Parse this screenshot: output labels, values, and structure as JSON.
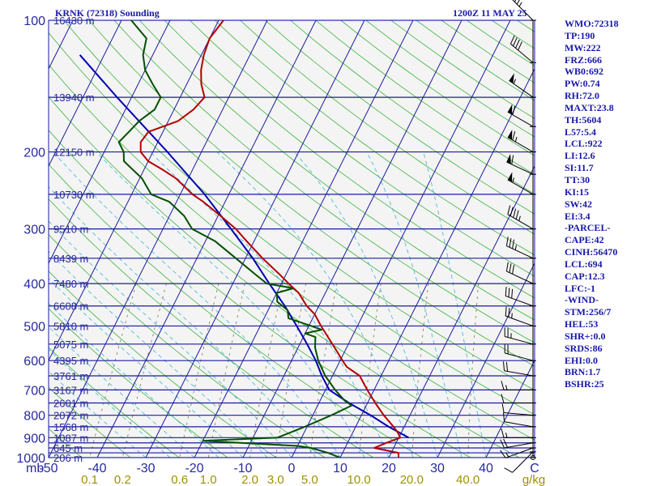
{
  "header": {
    "station": "KRNK (72318) Sounding",
    "time": "1200Z 11 MAY 25"
  },
  "stats": [
    "WMO:72318",
    "TP:190",
    "MW:222",
    "FRZ:666",
    "WB0:692",
    "PW:0.74",
    "RH:72.0",
    "MAXT:23.8",
    "TH:5604",
    "L57:5.4",
    "LCL:922",
    "LI:12.6",
    "SI:11.7",
    "TT:30",
    "KI:15",
    "SW:42",
    "EI:3.4",
    "-PARCEL-",
    "CAPE:42",
    "CINH:56470",
    "LCL:694",
    "CAP:12.3",
    "LFC:-1",
    "-WIND-",
    "STM:256/7",
    "HEL:53",
    "SHR+:0.0",
    "SRDS:86",
    "EHI:0.0",
    "BRN:1.7",
    "BSHR:25"
  ],
  "colors": {
    "isobar": "#1c1ca0",
    "isotherm": "#1c1ca0",
    "dry_adiabat": "#3cb43c",
    "moist_adiabat": "#3cb4d8",
    "mixing_ratio": "#787850",
    "temperature": "#b40000",
    "dewpoint": "#005000",
    "parcel": "#0000b4",
    "axis_text": "#2828a0",
    "mixing_label": "#a09000"
  },
  "chart_data": {
    "type": "skew-t",
    "pressure_labels": [
      {
        "p": 100,
        "label": "100"
      },
      {
        "p": 200,
        "label": "200"
      },
      {
        "p": 300,
        "label": "300"
      },
      {
        "p": 400,
        "label": "400"
      },
      {
        "p": 500,
        "label": "500"
      },
      {
        "p": 600,
        "label": "600"
      },
      {
        "p": 700,
        "label": "700"
      },
      {
        "p": 800,
        "label": "800"
      },
      {
        "p": 900,
        "label": "900"
      },
      {
        "p": 1000,
        "label": "1000"
      }
    ],
    "isobars": [
      100,
      150,
      200,
      250,
      300,
      350,
      400,
      450,
      500,
      550,
      600,
      650,
      700,
      750,
      800,
      850,
      900,
      925,
      950,
      975,
      1000
    ],
    "height_labels": [
      {
        "p": 100,
        "label": "16430 m"
      },
      {
        "p": 150,
        "label": "13940 m"
      },
      {
        "p": 200,
        "label": "12150 m"
      },
      {
        "p": 250,
        "label": "10730 m"
      },
      {
        "p": 300,
        "label": "9510 m"
      },
      {
        "p": 350,
        "label": "8439 m"
      },
      {
        "p": 400,
        "label": "7480 m"
      },
      {
        "p": 450,
        "label": "6608 m"
      },
      {
        "p": 500,
        "label": "5810 m"
      },
      {
        "p": 550,
        "label": "5075 m"
      },
      {
        "p": 600,
        "label": "4395 m"
      },
      {
        "p": 650,
        "label": "3761 m"
      },
      {
        "p": 700,
        "label": "3167 m"
      },
      {
        "p": 750,
        "label": "2601 m"
      },
      {
        "p": 800,
        "label": "2072 m"
      },
      {
        "p": 850,
        "label": "1568 m"
      },
      {
        "p": 900,
        "label": "1087 m"
      },
      {
        "p": 950,
        "label": "645 m"
      },
      {
        "p": 1000,
        "label": "206 m"
      }
    ],
    "temp_ticks": [
      {
        "t": -50,
        "label": "-50"
      },
      {
        "t": -40,
        "label": "-40"
      },
      {
        "t": -30,
        "label": "-30"
      },
      {
        "t": -20,
        "label": "-20"
      },
      {
        "t": -10,
        "label": "-10"
      },
      {
        "t": 0,
        "label": "0"
      },
      {
        "t": 10,
        "label": "10"
      },
      {
        "t": 20,
        "label": "20"
      },
      {
        "t": 30,
        "label": "30"
      },
      {
        "t": 40,
        "label": "40"
      }
    ],
    "bottom_left_label": "mb",
    "bottom_right_label": "C",
    "mixing_ratio_labels": [
      {
        "w": 0.1,
        "label": "0.1"
      },
      {
        "w": 0.2,
        "label": "0.2"
      },
      {
        "w": 0.6,
        "label": "0.6"
      },
      {
        "w": 1.0,
        "label": "1.0"
      },
      {
        "w": 2.0,
        "label": "2.0"
      },
      {
        "w": 3.0,
        "label": "3.0"
      },
      {
        "w": 5.0,
        "label": "5.0"
      },
      {
        "w": 10.0,
        "label": "10.0"
      },
      {
        "w": 20.0,
        "label": "20.0"
      },
      {
        "w": 40.0,
        "label": "40.0"
      }
    ],
    "mixing_unit": "g/kg",
    "temperature_profile": [
      [
        1000,
        22
      ],
      [
        975,
        21.5
      ],
      [
        950,
        16
      ],
      [
        925,
        18
      ],
      [
        900,
        20.3
      ],
      [
        875,
        19.2
      ],
      [
        850,
        17.8
      ],
      [
        800,
        14.6
      ],
      [
        750,
        11.6
      ],
      [
        700,
        8.6
      ],
      [
        650,
        5.6
      ],
      [
        620,
        2.0
      ],
      [
        600,
        0.5
      ],
      [
        560,
        -2.5
      ],
      [
        500,
        -7.5
      ],
      [
        470,
        -10.0
      ],
      [
        450,
        -12.5
      ],
      [
        420,
        -15.5
      ],
      [
        400,
        -18.5
      ],
      [
        380,
        -21.5
      ],
      [
        350,
        -26.5
      ],
      [
        320,
        -31.5
      ],
      [
        300,
        -35.0
      ],
      [
        280,
        -39.5
      ],
      [
        260,
        -44.5
      ],
      [
        250,
        -47.5
      ],
      [
        230,
        -52.5
      ],
      [
        220,
        -56.0
      ],
      [
        210,
        -60.0
      ],
      [
        200,
        -62.5
      ],
      [
        190,
        -63.5
      ],
      [
        180,
        -63.0
      ],
      [
        170,
        -58.0
      ],
      [
        160,
        -56.0
      ],
      [
        150,
        -55.0
      ],
      [
        140,
        -57.0
      ],
      [
        130,
        -58.5
      ],
      [
        120,
        -59.5
      ],
      [
        110,
        -60.0
      ],
      [
        100,
        -59.0
      ]
    ],
    "dewpoint_profile": [
      [
        1000,
        10.0
      ],
      [
        975,
        7.0
      ],
      [
        950,
        3.0
      ],
      [
        940,
        0.0
      ],
      [
        925,
        -12.0
      ],
      [
        915,
        -20.0
      ],
      [
        900,
        -5.0
      ],
      [
        850,
        -0.5
      ],
      [
        800,
        3.8
      ],
      [
        760,
        7.0
      ],
      [
        740,
        5.0
      ],
      [
        700,
        2.0
      ],
      [
        650,
        -1.5
      ],
      [
        600,
        -4.5
      ],
      [
        560,
        -6.5
      ],
      [
        530,
        -7.5
      ],
      [
        520,
        -10.0
      ],
      [
        510,
        -7.0
      ],
      [
        500,
        -9.5
      ],
      [
        480,
        -15.0
      ],
      [
        460,
        -16.0
      ],
      [
        440,
        -19.0
      ],
      [
        420,
        -20.0
      ],
      [
        410,
        -17.0
      ],
      [
        400,
        -23.0
      ],
      [
        380,
        -26.5
      ],
      [
        350,
        -32.0
      ],
      [
        320,
        -38.0
      ],
      [
        300,
        -44.0
      ],
      [
        280,
        -47.0
      ],
      [
        260,
        -51.5
      ],
      [
        250,
        -56.0
      ],
      [
        230,
        -59.5
      ],
      [
        210,
        -65.0
      ],
      [
        200,
        -66.0
      ],
      [
        190,
        -68.0
      ],
      [
        180,
        -67.0
      ],
      [
        170,
        -66.0
      ],
      [
        160,
        -64.0
      ],
      [
        150,
        -64.0
      ],
      [
        140,
        -67.0
      ],
      [
        130,
        -70.0
      ],
      [
        120,
        -72.0
      ],
      [
        110,
        -73.0
      ],
      [
        100,
        -78.0
      ]
    ],
    "parcel_profile": [
      [
        900,
        22.0
      ],
      [
        850,
        16.8
      ],
      [
        800,
        11.9
      ],
      [
        750,
        6.2
      ],
      [
        700,
        0.8
      ],
      [
        650,
        -2.2
      ],
      [
        600,
        -5.0
      ],
      [
        550,
        -8.5
      ],
      [
        500,
        -12.5
      ],
      [
        450,
        -17.0
      ],
      [
        400,
        -22.5
      ],
      [
        350,
        -28.5
      ],
      [
        300,
        -36.0
      ],
      [
        250,
        -45.0
      ],
      [
        200,
        -57.0
      ],
      [
        150,
        -73.0
      ],
      [
        120,
        -85.0
      ]
    ],
    "wind_barbs": [
      {
        "p": 1000,
        "dir": 0,
        "spd": 0
      },
      {
        "p": 970,
        "dir": 225,
        "spd": 10
      },
      {
        "p": 950,
        "dir": 250,
        "spd": 15
      },
      {
        "p": 925,
        "dir": 260,
        "spd": 20
      },
      {
        "p": 900,
        "dir": 270,
        "spd": 15
      },
      {
        "p": 850,
        "dir": 280,
        "spd": 10
      },
      {
        "p": 800,
        "dir": 275,
        "spd": 10
      },
      {
        "p": 750,
        "dir": 270,
        "spd": 10
      },
      {
        "p": 700,
        "dir": 270,
        "spd": 15
      },
      {
        "p": 650,
        "dir": 280,
        "spd": 20
      },
      {
        "p": 600,
        "dir": 285,
        "spd": 20
      },
      {
        "p": 550,
        "dir": 285,
        "spd": 25
      },
      {
        "p": 500,
        "dir": 290,
        "spd": 25
      },
      {
        "p": 450,
        "dir": 290,
        "spd": 30
      },
      {
        "p": 400,
        "dir": 295,
        "spd": 30
      },
      {
        "p": 350,
        "dir": 295,
        "spd": 35
      },
      {
        "p": 300,
        "dir": 300,
        "spd": 45
      },
      {
        "p": 250,
        "dir": 300,
        "spd": 55
      },
      {
        "p": 225,
        "dir": 295,
        "spd": 60
      },
      {
        "p": 200,
        "dir": 300,
        "spd": 65
      },
      {
        "p": 175,
        "dir": 300,
        "spd": 60
      },
      {
        "p": 150,
        "dir": 305,
        "spd": 55
      },
      {
        "p": 125,
        "dir": 310,
        "spd": 40
      },
      {
        "p": 100,
        "dir": 315,
        "spd": 35
      }
    ]
  }
}
